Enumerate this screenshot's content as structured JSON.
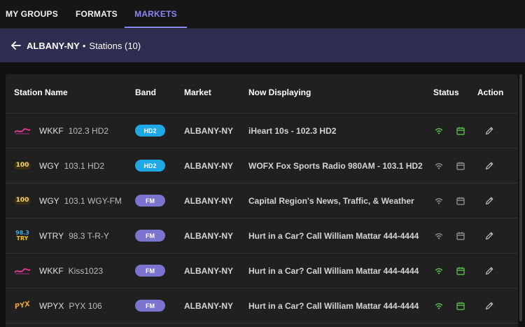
{
  "tabs": [
    {
      "label": "MY GROUPS"
    },
    {
      "label": "FORMATS"
    },
    {
      "label": "MARKETS"
    }
  ],
  "subheader": {
    "market": "ALBANY-NY",
    "separator": "•",
    "stations": "Stations (10)"
  },
  "table": {
    "headers": [
      "Station Name",
      "Band",
      "Market",
      "Now Displaying",
      "Status",
      "Action"
    ],
    "rows": [
      {
        "call": "WKKF",
        "freq": "102.3 HD2",
        "band": "HD2",
        "market": "ALBANY-NY",
        "now": "iHeart 10s - 102.3 HD2",
        "status_active": true,
        "logo": "kiss"
      },
      {
        "call": "WGY",
        "freq": "103.1 HD2",
        "band": "HD2",
        "market": "ALBANY-NY",
        "now": "WOFX Fox Sports Radio 980AM - 103.1 HD2",
        "status_active": false,
        "logo": "wgy"
      },
      {
        "call": "WGY",
        "freq": "103.1 WGY-FM",
        "band": "FM",
        "market": "ALBANY-NY",
        "now": "Capital Region's News, Traffic, & Weather",
        "status_active": false,
        "logo": "wgy"
      },
      {
        "call": "WTRY",
        "freq": "98.3 T-R-Y",
        "band": "FM",
        "market": "ALBANY-NY",
        "now": "Hurt in a Car? Call William Mattar 444-4444",
        "status_active": false,
        "logo": "try"
      },
      {
        "call": "WKKF",
        "freq": "Kiss1023",
        "band": "FM",
        "market": "ALBANY-NY",
        "now": "Hurt in a Car? Call William Mattar 444-4444",
        "status_active": true,
        "logo": "kiss"
      },
      {
        "call": "WPYX",
        "freq": "PYX 106",
        "band": "FM",
        "market": "ALBANY-NY",
        "now": "Hurt in a Car? Call William Mattar 444-4444",
        "status_active": true,
        "logo": "pyx"
      }
    ]
  },
  "logos": {
    "wgy_text": "100",
    "try_top": "98.3",
    "try_bottom": "TRY",
    "pyx_text": "PYX"
  },
  "colors": {
    "accent": "#8c86f0",
    "subheader_bg": "#2e2c4f",
    "badge_hd2": "#1fa8e6",
    "badge_fm": "#7b74cf",
    "status_active": "#5fcf4f",
    "status_inactive": "#9a9a9a"
  }
}
